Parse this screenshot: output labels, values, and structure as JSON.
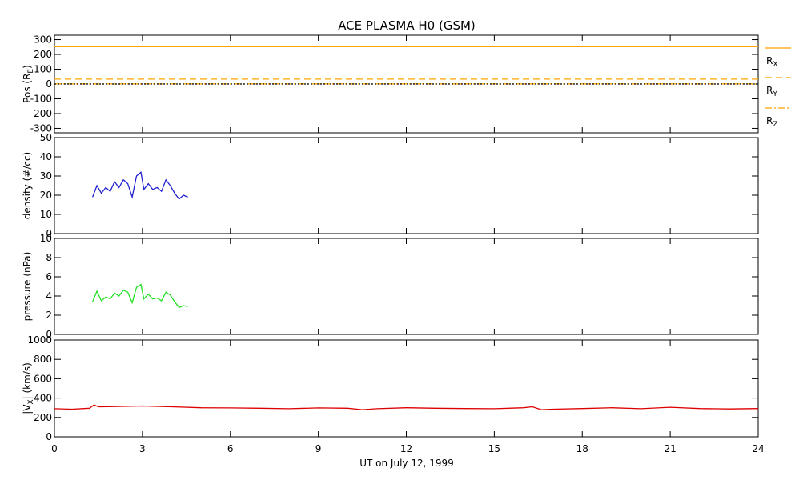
{
  "chart_data": {
    "title": "ACE PLASMA H0 (GSM)",
    "xlabel": "UT on July 12, 1999",
    "xlim": [
      0,
      24
    ],
    "xticks": [
      "0",
      "3",
      "6",
      "9",
      "12",
      "15",
      "18",
      "21",
      "24"
    ],
    "panels": [
      {
        "id": "position",
        "type": "line",
        "ylabel": "Pos (R",
        "ylabel_sub": "E",
        "ylabel_end": ")",
        "ylim": [
          -330,
          330
        ],
        "yticks": [
          -300,
          -200,
          -100,
          0,
          100,
          200,
          300
        ],
        "series": [
          {
            "name": "R",
            "sub": "X",
            "color": "#ffa500",
            "dash": "solid",
            "x": [
              0,
              24
            ],
            "y": [
              252,
              252
            ]
          },
          {
            "name": "R",
            "sub": "Y",
            "color": "#ffa500",
            "dash": "dashed",
            "x": [
              0,
              24
            ],
            "y": [
              33,
              33
            ]
          },
          {
            "name": "R",
            "sub": "Z",
            "color": "#ffa500",
            "dash": "dashdot",
            "x": [
              0,
              24
            ],
            "y": [
              1,
              1
            ]
          },
          {
            "name": "",
            "color": "#000000",
            "dash": "dotted",
            "x": [
              0,
              24
            ],
            "y": [
              0,
              0
            ]
          }
        ]
      },
      {
        "id": "density",
        "type": "line",
        "ylabel": "density (#/cc)",
        "ylim": [
          0,
          50
        ],
        "yticks": [
          0,
          10,
          20,
          30,
          40,
          50
        ],
        "series": [
          {
            "name": "",
            "color": "#2020d0",
            "x": [
              1.3,
              1.45,
              1.6,
              1.75,
              1.9,
              2.05,
              2.2,
              2.35,
              2.5,
              2.65,
              2.8,
              2.95,
              3.05,
              3.2,
              3.35,
              3.5,
              3.65,
              3.8,
              3.95,
              4.1,
              4.25,
              4.4,
              4.55
            ],
            "y": [
              19,
              25,
              21,
              24,
              22,
              27,
              24,
              28,
              26,
              19,
              30,
              32,
              23,
              26,
              23,
              24,
              22,
              28,
              25,
              21,
              18,
              20,
              19
            ]
          }
        ]
      },
      {
        "id": "pressure",
        "type": "line",
        "ylabel": "pressure (nPa)",
        "ylim": [
          0,
          10
        ],
        "yticks": [
          0,
          2,
          4,
          6,
          8,
          10
        ],
        "series": [
          {
            "name": "",
            "color": "#20e020",
            "x": [
              1.3,
              1.45,
              1.6,
              1.75,
              1.9,
              2.05,
              2.2,
              2.35,
              2.5,
              2.65,
              2.8,
              2.95,
              3.05,
              3.2,
              3.35,
              3.5,
              3.65,
              3.8,
              3.95,
              4.1,
              4.25,
              4.4,
              4.55
            ],
            "y": [
              3.4,
              4.5,
              3.5,
              3.9,
              3.7,
              4.3,
              4.0,
              4.6,
              4.4,
              3.3,
              4.9,
              5.2,
              3.7,
              4.2,
              3.7,
              3.8,
              3.5,
              4.4,
              4.1,
              3.4,
              2.8,
              3.0,
              2.9
            ]
          }
        ]
      },
      {
        "id": "vx",
        "type": "line",
        "ylabel": "|V",
        "ylabel_sub": "X",
        "ylabel_end": "| (km/s)",
        "ylim": [
          0,
          1000
        ],
        "yticks": [
          0,
          200,
          400,
          600,
          800,
          1000
        ],
        "series": [
          {
            "name": "",
            "color": "#dd0000",
            "x": [
              0,
              0.6,
              1.2,
              1.35,
              1.5,
              2,
              3,
              4,
              5,
              6,
              7,
              8,
              9,
              10,
              10.5,
              11,
              12,
              13,
              14,
              15,
              16,
              16.3,
              16.6,
              17,
              18,
              19,
              20,
              21,
              22,
              23,
              24
            ],
            "y": [
              290,
              285,
              295,
              330,
              310,
              312,
              318,
              310,
              300,
              298,
              295,
              290,
              298,
              295,
              280,
              290,
              300,
              295,
              292,
              290,
              300,
              310,
              280,
              285,
              292,
              300,
              290,
              305,
              292,
              288,
              292
            ]
          }
        ]
      }
    ]
  }
}
